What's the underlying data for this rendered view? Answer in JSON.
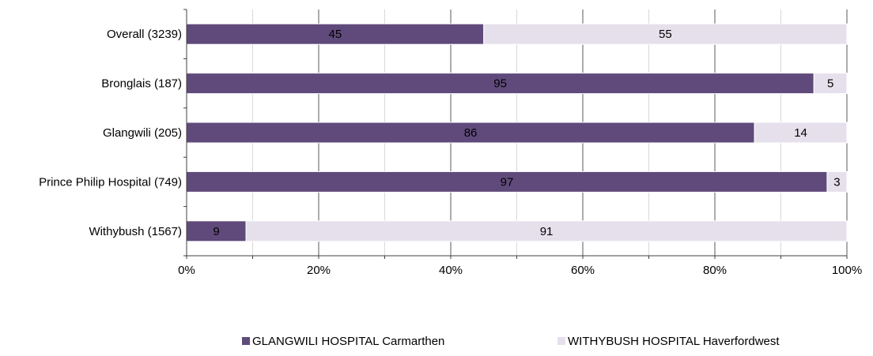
{
  "chart_data": {
    "type": "bar",
    "orientation": "horizontal",
    "stacked": true,
    "title": "",
    "xlabel": "",
    "ylabel": "",
    "xlim": [
      0,
      100
    ],
    "x_ticks": [
      "0%",
      "20%",
      "40%",
      "60%",
      "80%",
      "100%"
    ],
    "grid": true,
    "legend_position": "bottom",
    "categories": [
      "Overall (3239)",
      "Bronglais (187)",
      "Glangwili (205)",
      "Prince Philip Hospital (749)",
      "Withybush (1567)"
    ],
    "series": [
      {
        "name": "GLANGWILI HOSPITAL Carmarthen",
        "color": "#604a7b",
        "values": [
          45,
          95,
          86,
          97,
          9
        ]
      },
      {
        "name": "WITHYBUSH HOSPITAL Haverfordwest",
        "color": "#e6e0ec",
        "values": [
          55,
          5,
          14,
          3,
          91
        ]
      }
    ]
  }
}
